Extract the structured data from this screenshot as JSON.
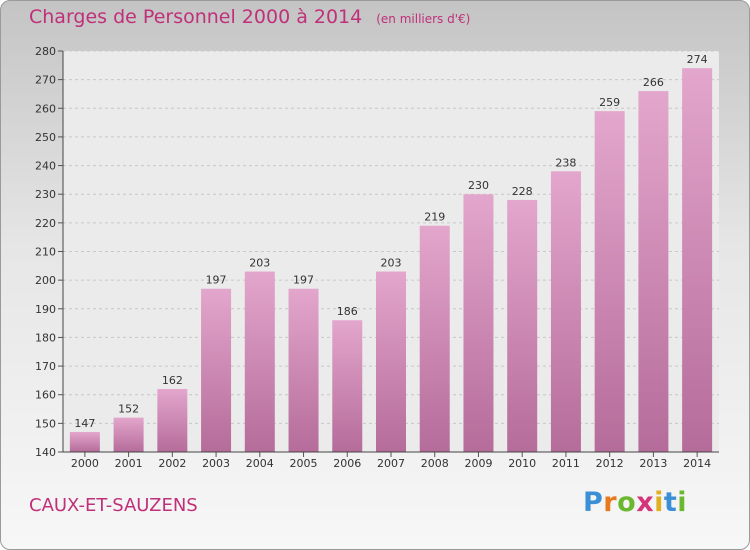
{
  "title": "Charges de Personnel 2000 à 2014",
  "subtitle": "(en milliers d'€)",
  "place": "CAUX-ET-SAUZENS",
  "logo": {
    "letters": [
      "P",
      "r",
      "o",
      "x",
      "i",
      "t",
      "i"
    ],
    "colors": [
      "#3b8fd6",
      "#e87a1e",
      "#6bb82e",
      "#d4357a",
      "#e0b020",
      "#3b8fd6",
      "#6bb82e"
    ]
  },
  "colors": {
    "bar_top": "#e3a6cc",
    "bar_bottom": "#b56c9a",
    "accent": "#c0307a"
  },
  "chart_data": {
    "type": "bar",
    "title": "Charges de Personnel 2000 à 2014",
    "subtitle": "(en milliers d'€)",
    "categories": [
      "2000",
      "2001",
      "2002",
      "2003",
      "2004",
      "2005",
      "2006",
      "2007",
      "2008",
      "2009",
      "2010",
      "2011",
      "2012",
      "2013",
      "2014"
    ],
    "values": [
      147,
      152,
      162,
      197,
      203,
      197,
      186,
      203,
      219,
      230,
      228,
      238,
      259,
      266,
      274
    ],
    "ylim": [
      140,
      280
    ],
    "yticks": [
      140,
      150,
      160,
      170,
      180,
      190,
      200,
      210,
      220,
      230,
      240,
      250,
      260,
      270,
      280
    ],
    "grid": true,
    "xlabel": "",
    "ylabel": ""
  }
}
